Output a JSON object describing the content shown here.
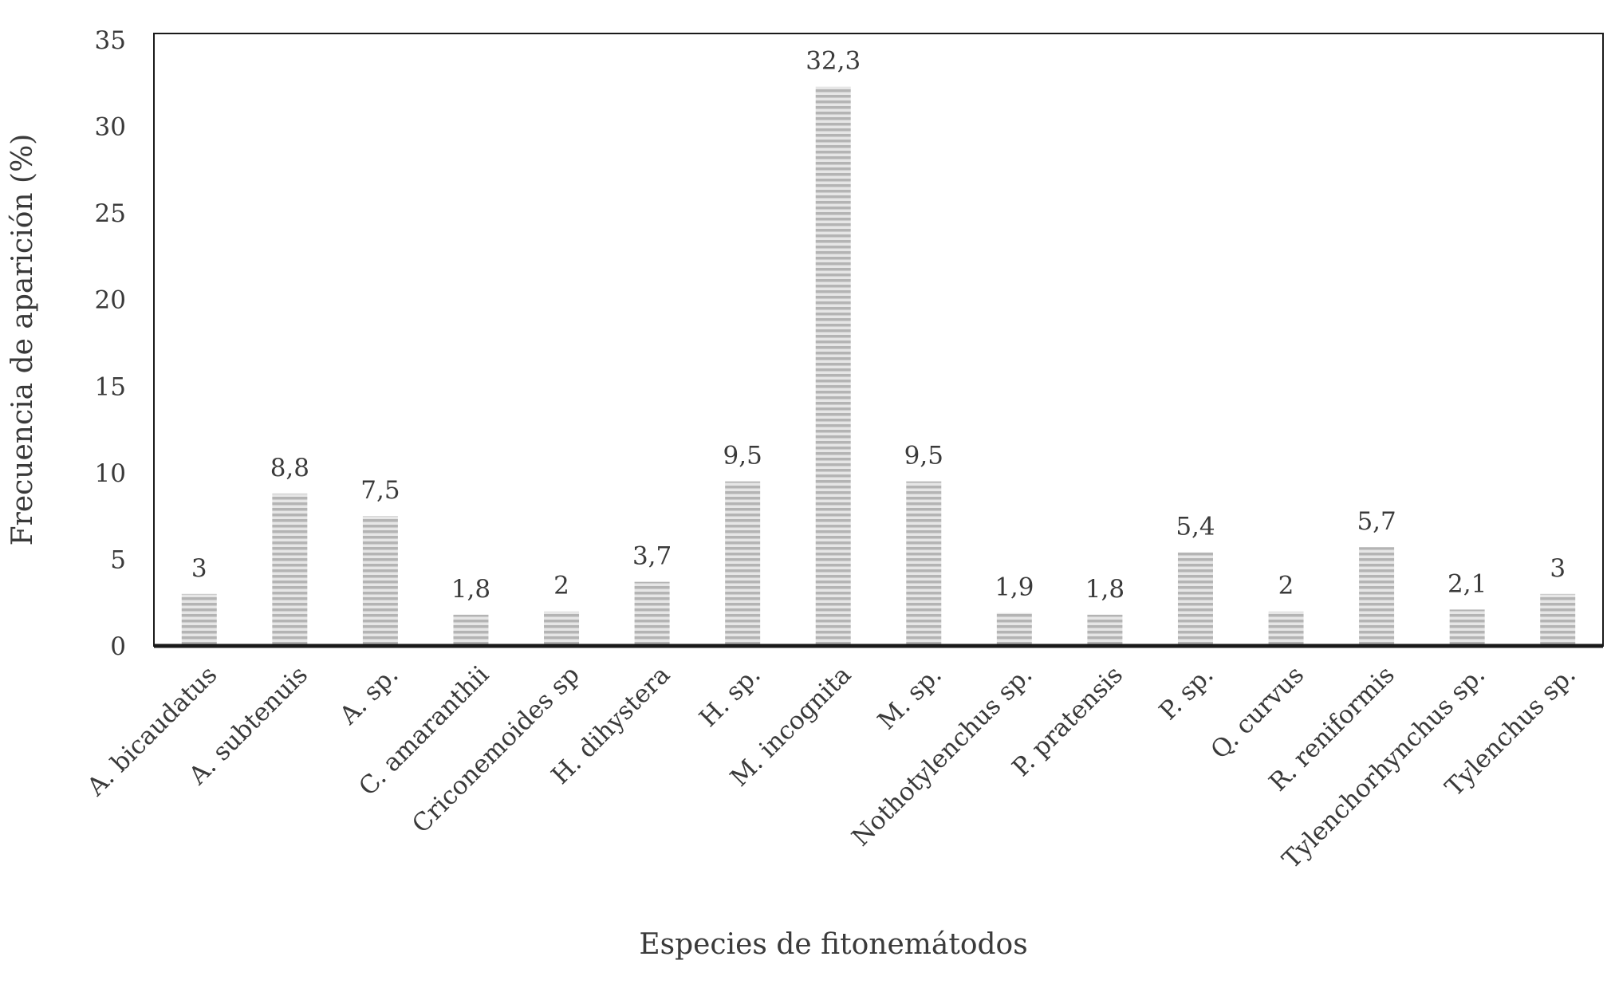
{
  "chart_data": {
    "type": "bar",
    "title": "",
    "xlabel": "Especies de fitonemátodos",
    "ylabel": "Frecuencia de aparición (%)",
    "ylim": [
      0,
      35
    ],
    "yticks": [
      0,
      5,
      10,
      15,
      20,
      25,
      30,
      35
    ],
    "grid": false,
    "legend": "none",
    "categories": [
      "A. bicaudatus",
      "A. subtenuis",
      "A. sp.",
      "C. amaranthii",
      "Criconemoides sp",
      "H. dihystera",
      "H. sp.",
      "M. incognita",
      "M. sp.",
      "Nothotylenchus sp.",
      "P. pratensis",
      "P. sp.",
      "Q. curvus",
      "R. reniformis",
      "Tylenchorhynchus sp.",
      "Tylenchus sp."
    ],
    "values": [
      3,
      8.8,
      7.5,
      1.8,
      2,
      3.7,
      9.5,
      32.3,
      9.5,
      1.9,
      1.8,
      5.4,
      2,
      5.7,
      2.1,
      3
    ],
    "data_labels": [
      "3",
      "8,8",
      "7,5",
      "1,8",
      "2",
      "3,7",
      "9,5",
      "32,3",
      "9,5",
      "1,9",
      "1,8",
      "5,4",
      "2",
      "5,7",
      "2,1",
      "3"
    ],
    "colors": {
      "bar_fill": "#b4b4b4",
      "bar_stripe": "#e6e6e6",
      "axis": "#1a1a1a",
      "text": "#3a3a3a"
    }
  }
}
